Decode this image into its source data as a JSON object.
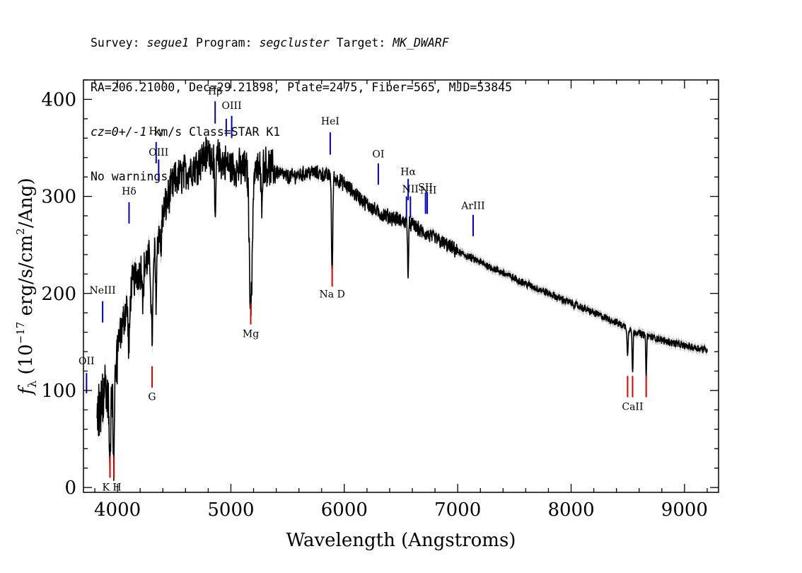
{
  "header": {
    "line1": {
      "survey_label": "Survey: ",
      "survey": "segue1",
      "program_label": " Program: ",
      "program": "segcluster",
      "target_label": " Target: ",
      "target": "MK_DWARF"
    },
    "line2": "RA=206.21000, Dec=29.21898, Plate=2475, Fiber=565, MJD=53845",
    "line3": {
      "cz": "cz=0+/-1",
      "rest": " km/s Class=STAR K1"
    },
    "line4": "No warnings."
  },
  "chart_data": {
    "type": "line",
    "xlabel": "Wavelength (Angstroms)",
    "ylabel_parts": {
      "f": "f",
      "sub": "λ",
      "pre": " (10",
      "exp1": "−17",
      "mid": " erg/s/cm",
      "exp2": "2",
      "post": "/Ang)"
    },
    "xlim": [
      3700,
      9300
    ],
    "ylim": [
      -5,
      420
    ],
    "x_ticks": [
      4000,
      5000,
      6000,
      7000,
      8000,
      9000
    ],
    "y_ticks": [
      0,
      100,
      200,
      300,
      400
    ],
    "colors": {
      "spectrum": "#000000",
      "error": "#aaaaaa",
      "emission": "#0000cc",
      "absorption": "#dd0000"
    },
    "continuum": [
      [
        3820,
        90
      ],
      [
        3860,
        100
      ],
      [
        3900,
        115
      ],
      [
        3950,
        120
      ],
      [
        4000,
        145
      ],
      [
        4050,
        170
      ],
      [
        4100,
        200
      ],
      [
        4150,
        215
      ],
      [
        4200,
        225
      ],
      [
        4250,
        230
      ],
      [
        4300,
        240
      ],
      [
        4350,
        255
      ],
      [
        4400,
        280
      ],
      [
        4450,
        300
      ],
      [
        4500,
        315
      ],
      [
        4600,
        325
      ],
      [
        4700,
        333
      ],
      [
        4800,
        345
      ],
      [
        4900,
        338
      ],
      [
        5000,
        330
      ],
      [
        5100,
        328
      ],
      [
        5200,
        326
      ],
      [
        5300,
        332
      ],
      [
        5400,
        326
      ],
      [
        5500,
        320
      ],
      [
        5600,
        322
      ],
      [
        5700,
        325
      ],
      [
        5800,
        323
      ],
      [
        5900,
        320
      ],
      [
        6000,
        313
      ],
      [
        6100,
        302
      ],
      [
        6200,
        292
      ],
      [
        6300,
        283
      ],
      [
        6400,
        279
      ],
      [
        6500,
        275
      ],
      [
        6600,
        271
      ],
      [
        6700,
        262
      ],
      [
        6800,
        257
      ],
      [
        6900,
        250
      ],
      [
        7000,
        243
      ],
      [
        7200,
        232
      ],
      [
        7400,
        221
      ],
      [
        7600,
        210
      ],
      [
        7800,
        200
      ],
      [
        8000,
        190
      ],
      [
        8200,
        180
      ],
      [
        8400,
        170
      ],
      [
        8600,
        159
      ],
      [
        8800,
        152
      ],
      [
        9000,
        146
      ],
      [
        9200,
        142
      ]
    ],
    "absorption_features": [
      [
        3933,
        75,
        8
      ],
      [
        3968,
        80,
        8
      ],
      [
        4101,
        60,
        10
      ],
      [
        4226,
        40,
        6
      ],
      [
        4305,
        85,
        12
      ],
      [
        4340,
        55,
        8
      ],
      [
        4383,
        35,
        6
      ],
      [
        4861,
        70,
        8
      ],
      [
        5167,
        95,
        12
      ],
      [
        5183,
        110,
        12
      ],
      [
        5270,
        35,
        8
      ],
      [
        5890,
        70,
        6
      ],
      [
        5896,
        60,
        6
      ],
      [
        6563,
        55,
        6
      ],
      [
        8498,
        30,
        6
      ],
      [
        8542,
        45,
        6
      ],
      [
        8662,
        40,
        6
      ]
    ],
    "emission_lines": [
      {
        "label": "OII",
        "x": 3727,
        "y1": 97,
        "y2": 118,
        "ty": 127
      },
      {
        "label": "NeIII",
        "x": 3869,
        "y1": 170,
        "y2": 192,
        "ty": 200
      },
      {
        "label": "Hδ",
        "x": 4102,
        "y1": 272,
        "y2": 294,
        "ty": 302
      },
      {
        "label": "Hγ",
        "x": 4341,
        "y1": 334,
        "y2": 356,
        "ty": 364
      },
      {
        "label": "OIII",
        "x": 4363,
        "y1": 316,
        "y2": 338,
        "ty": 342
      },
      {
        "label": "Hβ",
        "x": 4861,
        "y1": 375,
        "y2": 398,
        "ty": 405
      },
      {
        "label": "OIII",
        "x": 4959,
        "y1": 362,
        "y2": 380,
        "ty": 0
      },
      {
        "label": "OIII",
        "x": 5007,
        "y1": 360,
        "y2": 383,
        "ty": 390
      },
      {
        "label": "HeI",
        "x": 5876,
        "y1": 343,
        "y2": 366,
        "ty": 374
      },
      {
        "label": "OI",
        "x": 6300,
        "y1": 312,
        "y2": 334,
        "ty": 340
      },
      {
        "label": "NII",
        "x": 6548,
        "y1": 278,
        "y2": 300,
        "ty": 0
      },
      {
        "label": "Hα",
        "x": 6563,
        "y1": 296,
        "y2": 318,
        "ty": 322
      },
      {
        "label": "NII",
        "x": 6583,
        "y1": 278,
        "y2": 300,
        "ty": 304
      },
      {
        "label": "SII",
        "x": 6716,
        "y1": 282,
        "y2": 304,
        "ty": 306
      },
      {
        "label": "SII",
        "x": 6731,
        "y1": 282,
        "y2": 304,
        "ty": 0
      },
      {
        "label": "NII",
        "x": 6742,
        "y1": 0,
        "y2": 0,
        "ty": 303
      },
      {
        "label": "ArIII",
        "x": 7136,
        "y1": 259,
        "y2": 281,
        "ty": 287
      }
    ],
    "absorption_lines": [
      {
        "label": "K H",
        "x": 3950,
        "ticks": [
          3934,
          3969
        ],
        "y1": 10,
        "y2": 32,
        "ty": -3
      },
      {
        "label": "G",
        "x": 4305,
        "ticks": [
          4305
        ],
        "y1": 103,
        "y2": 125,
        "ty": 90
      },
      {
        "label": "Mg",
        "x": 5175,
        "ticks": [
          5175
        ],
        "y1": 168,
        "y2": 190,
        "ty": 155
      },
      {
        "label": "Na D",
        "x": 5893,
        "ticks": [
          5893
        ],
        "y1": 207,
        "y2": 229,
        "ty": 196
      },
      {
        "label": "CaII",
        "x": 8542,
        "ticks": [
          8498,
          8542,
          8662
        ],
        "y1": 93,
        "y2": 115,
        "ty": 80
      }
    ]
  }
}
